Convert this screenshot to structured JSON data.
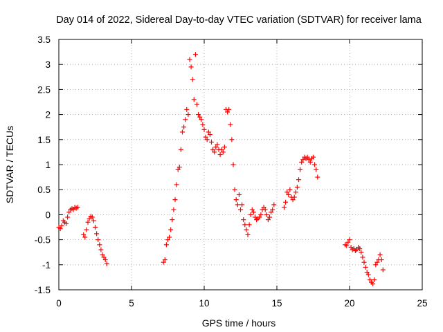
{
  "chart_data": {
    "type": "scatter",
    "title": "Day 014 of 2022, Sidereal Day-to-day VTEC variation (SDTVAR) for receiver lama",
    "xlabel": "GPS time / hours",
    "ylabel": "SDTVAR / TECUs",
    "xlim": [
      0,
      25
    ],
    "ylim": [
      -1.5,
      3.5
    ],
    "x_ticks": [
      0,
      5,
      10,
      15,
      20,
      25
    ],
    "x_tick_labels": [
      "0",
      "5",
      "10",
      "15",
      "20",
      "25"
    ],
    "y_ticks": [
      -1.5,
      -1,
      -0.5,
      0,
      0.5,
      1,
      1.5,
      2,
      2.5,
      3,
      3.5
    ],
    "y_tick_labels": [
      "-1.5",
      "-1",
      "-0.5",
      "0",
      "0.5",
      "1",
      "1.5",
      "2",
      "2.5",
      "3",
      "3.5"
    ],
    "grid": true,
    "marker": "+",
    "series": [
      {
        "name": "SDTVAR",
        "color": "#ff0000",
        "segments": [
          {
            "x": [
              0.0,
              0.1,
              0.2,
              0.3,
              0.4,
              0.5,
              0.6,
              0.7,
              0.8,
              0.9,
              1.0,
              1.1,
              1.2,
              1.3
            ],
            "y": [
              -0.25,
              -0.28,
              -0.22,
              -0.12,
              -0.15,
              -0.18,
              -0.05,
              0.05,
              0.1,
              0.12,
              0.1,
              0.15,
              0.13,
              0.15
            ]
          },
          {
            "x": [
              1.7,
              1.8,
              1.9,
              2.0,
              2.1,
              2.2,
              2.3,
              2.4,
              2.5,
              2.6,
              2.7,
              2.8,
              2.9,
              3.0,
              3.1,
              3.2,
              3.3
            ],
            "y": [
              -0.4,
              -0.45,
              -0.3,
              -0.15,
              -0.08,
              -0.03,
              -0.05,
              -0.12,
              -0.25,
              -0.38,
              -0.5,
              -0.6,
              -0.7,
              -0.8,
              -0.85,
              -0.9,
              -0.98
            ]
          },
          {
            "x": [
              7.2,
              7.3,
              7.4,
              7.5,
              7.6,
              7.7,
              7.8,
              7.9,
              8.0,
              8.1,
              8.2,
              8.3,
              8.4,
              8.5,
              8.6,
              8.7,
              8.8,
              8.9,
              9.0,
              9.1,
              9.2,
              9.3,
              9.4,
              9.5,
              9.6,
              9.7,
              9.8,
              9.9,
              10.0,
              10.1,
              10.2,
              10.3,
              10.4,
              10.5,
              10.6,
              10.7,
              10.8,
              10.9,
              11.0,
              11.1,
              11.2,
              11.3,
              11.4,
              11.5,
              11.6,
              11.7,
              11.8,
              11.9,
              12.0,
              12.1,
              12.2,
              12.3,
              12.4,
              12.5,
              12.6,
              12.7,
              12.8,
              12.9,
              13.0,
              13.1,
              13.2,
              13.3,
              13.4,
              13.5,
              13.6,
              13.7,
              13.8,
              13.9,
              14.0,
              14.1,
              14.2,
              14.3,
              14.4,
              14.5,
              14.6,
              14.7,
              14.8
            ],
            "y": [
              -0.95,
              -0.9,
              -0.6,
              -0.5,
              -0.45,
              -0.3,
              -0.1,
              0.1,
              0.3,
              0.6,
              0.9,
              0.95,
              1.3,
              1.65,
              1.75,
              1.9,
              2.1,
              2.0,
              3.1,
              2.95,
              2.7,
              2.3,
              3.2,
              2.2,
              2.0,
              1.95,
              1.9,
              1.8,
              1.7,
              1.55,
              1.5,
              1.65,
              1.6,
              1.45,
              1.3,
              1.25,
              1.35,
              1.4,
              1.3,
              1.2,
              1.3,
              1.25,
              1.35,
              2.1,
              2.05,
              2.1,
              1.8,
              1.5,
              1.0,
              0.5,
              0.3,
              0.2,
              0.4,
              0.1,
              0.2,
              -0.1,
              -0.2,
              -0.3,
              -0.4,
              -0.2,
              0.0,
              0.1,
              0.05,
              -0.05,
              -0.1,
              -0.08,
              -0.05,
              0.0,
              0.1,
              0.15,
              0.1,
              0.0,
              -0.1,
              -0.05,
              0.05,
              0.1,
              0.2
            ]
          },
          {
            "x": [
              15.5,
              15.6,
              15.7,
              15.8,
              15.9,
              16.0,
              16.1,
              16.2,
              16.3,
              16.4,
              16.5,
              16.6,
              16.7,
              16.8,
              16.9,
              17.0,
              17.1,
              17.2,
              17.3,
              17.4,
              17.5,
              17.6,
              17.7,
              17.8
            ],
            "y": [
              0.15,
              0.25,
              0.45,
              0.4,
              0.5,
              0.35,
              0.3,
              0.35,
              0.45,
              0.55,
              0.7,
              0.9,
              1.05,
              1.1,
              1.15,
              1.12,
              1.15,
              1.1,
              1.05,
              1.12,
              1.15,
              1.0,
              0.9,
              0.75
            ]
          },
          {
            "x": [
              19.7,
              19.8,
              19.9,
              20.0,
              20.1,
              20.2,
              20.3,
              20.4,
              20.5,
              20.6,
              20.7,
              20.8,
              20.9,
              21.0,
              21.1,
              21.2,
              21.3,
              21.4,
              21.5,
              21.6,
              21.7,
              21.8,
              21.9,
              22.0,
              22.1,
              22.2,
              22.3
            ],
            "y": [
              -0.6,
              -0.62,
              -0.55,
              -0.5,
              -0.65,
              -0.7,
              -0.68,
              -0.72,
              -0.7,
              -0.65,
              -0.68,
              -0.75,
              -0.85,
              -0.95,
              -1.05,
              -1.15,
              -1.2,
              -1.3,
              -1.35,
              -1.38,
              -1.3,
              -1.0,
              -0.95,
              -0.9,
              -0.8,
              -0.9,
              -1.1
            ]
          }
        ]
      }
    ]
  }
}
